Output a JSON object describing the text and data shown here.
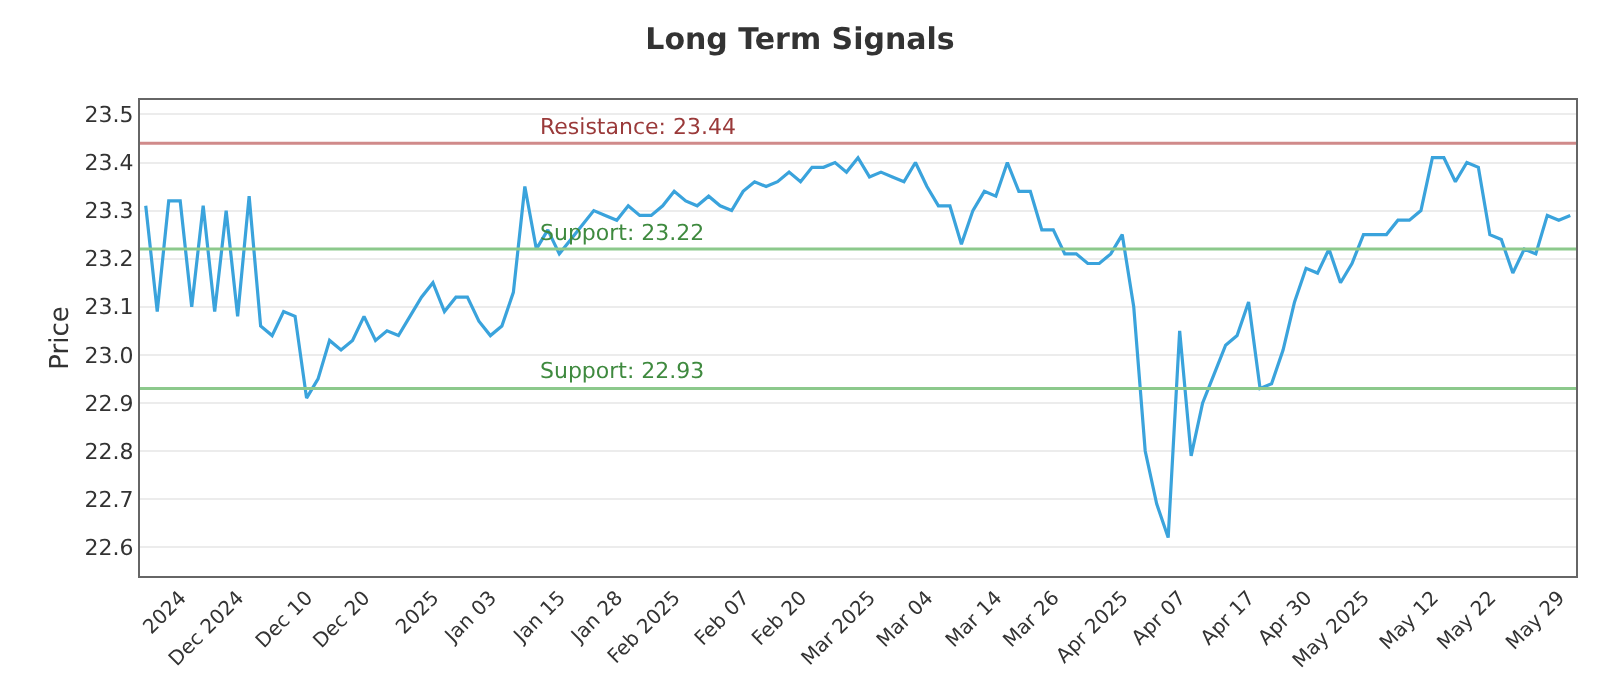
{
  "chart_data": {
    "type": "line",
    "title": "Long Term Signals",
    "ylabel": "Price",
    "categories": [
      null,
      null,
      null,
      "2024",
      null,
      null,
      null,
      null,
      "Dec 2024",
      null,
      null,
      null,
      null,
      null,
      "Dec 10",
      null,
      null,
      null,
      null,
      "Dec 20",
      null,
      null,
      null,
      null,
      null,
      "2025",
      null,
      null,
      null,
      null,
      "Jan 03",
      null,
      null,
      null,
      null,
      null,
      "Jan 15",
      null,
      null,
      null,
      null,
      "Jan 28",
      null,
      null,
      null,
      null,
      "Feb 2025",
      null,
      null,
      null,
      null,
      null,
      "Feb 07",
      null,
      null,
      null,
      null,
      "Feb 20",
      null,
      null,
      null,
      null,
      null,
      "Mar 2025",
      null,
      null,
      null,
      null,
      "Mar 04",
      null,
      null,
      null,
      null,
      null,
      "Mar 14",
      null,
      null,
      null,
      null,
      "Mar 26",
      null,
      null,
      null,
      null,
      null,
      "Apr 2025",
      null,
      null,
      null,
      null,
      "Apr 07",
      null,
      null,
      null,
      null,
      null,
      "Apr 17",
      null,
      null,
      null,
      null,
      "Apr 30",
      null,
      null,
      null,
      null,
      "May 2025",
      null,
      null,
      null,
      null,
      null,
      "May 12",
      null,
      null,
      null,
      null,
      "May 22",
      null,
      null,
      null,
      null,
      null,
      "May 29",
      null
    ],
    "series": [
      {
        "color": "#3aa3dc",
        "values": [
          23.31,
          23.09,
          23.32,
          23.32,
          23.1,
          23.31,
          23.09,
          23.3,
          23.08,
          23.33,
          23.06,
          23.04,
          23.09,
          23.08,
          22.91,
          22.95,
          23.03,
          23.01,
          23.03,
          23.08,
          23.03,
          23.05,
          23.04,
          23.08,
          23.12,
          23.15,
          23.09,
          23.12,
          23.12,
          23.07,
          23.04,
          23.06,
          23.13,
          23.35,
          23.22,
          23.26,
          23.21,
          23.24,
          23.27,
          23.3,
          23.29,
          23.28,
          23.31,
          23.29,
          23.29,
          23.31,
          23.34,
          23.32,
          23.31,
          23.33,
          23.31,
          23.3,
          23.34,
          23.36,
          23.35,
          23.36,
          23.38,
          23.36,
          23.39,
          23.39,
          23.4,
          23.38,
          23.41,
          23.37,
          23.38,
          23.37,
          23.36,
          23.4,
          23.35,
          23.31,
          23.31,
          23.23,
          23.3,
          23.34,
          23.33,
          23.4,
          23.34,
          23.34,
          23.26,
          23.26,
          23.21,
          23.21,
          23.19,
          23.19,
          23.21,
          23.25,
          23.1,
          22.8,
          22.69,
          22.62,
          23.05,
          22.79,
          22.9,
          22.96,
          23.02,
          23.04,
          23.11,
          22.93,
          22.94,
          23.01,
          23.11,
          23.18,
          23.17,
          23.22,
          23.15,
          23.19,
          23.25,
          23.25,
          23.25,
          23.28,
          23.28,
          23.3,
          23.41,
          23.41,
          23.36,
          23.4,
          23.39,
          23.25,
          23.24,
          23.17,
          23.22,
          23.21,
          23.29,
          23.28,
          23.29
        ]
      }
    ],
    "ylim": [
      22.54,
      23.53
    ],
    "yticks": [
      22.6,
      22.7,
      22.8,
      22.9,
      {
        "value": 23,
        "label": "23.0"
      },
      23.1,
      23.2,
      23.3,
      23.4,
      23.5
    ],
    "ref_lines": [
      {
        "axis": "y",
        "value": 23.44,
        "label": "Resistance: 23.44",
        "color": "#d08a8a"
      },
      {
        "axis": "y",
        "value": 23.22,
        "label": "Support: 23.22",
        "color": "#8cc98c"
      },
      {
        "axis": "y",
        "value": 22.93,
        "label": "Support: 22.93",
        "color": "#8cc98c"
      }
    ],
    "grid": "y",
    "marker": "none",
    "line_style": "solid"
  }
}
